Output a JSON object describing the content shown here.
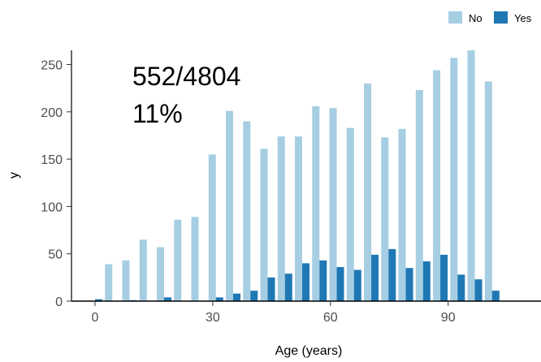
{
  "chart_data": {
    "type": "bar",
    "xlabel": "Age (years)",
    "ylabel": "y",
    "xlim": [
      -7,
      114
    ],
    "ylim": [
      0,
      265
    ],
    "xticks": [
      0,
      30,
      60,
      90
    ],
    "yticks": [
      0,
      50,
      100,
      150,
      200,
      250
    ],
    "grid": false,
    "legend_position": "top-right",
    "annotations": [
      "552/4804",
      "11%"
    ],
    "x": [
      0,
      4.4,
      8.8,
      13.2,
      17.6,
      22.0,
      26.4,
      30.8,
      35.2,
      39.6,
      44.0,
      48.4,
      52.8,
      57.2,
      61.6,
      66.0,
      70.4,
      74.8,
      79.2,
      83.6,
      88.0,
      92.4,
      96.8,
      101.2
    ],
    "series": [
      {
        "name": "No",
        "color": "#a6cee3",
        "values": [
          0,
          39,
          43,
          65,
          57,
          86,
          89,
          155,
          201,
          190,
          161,
          174,
          174,
          206,
          204,
          183,
          230,
          173,
          182,
          223,
          244,
          257,
          265,
          232
        ]
      },
      {
        "name": "Yes",
        "color": "#1f78b4",
        "values": [
          2,
          0,
          1,
          0,
          4,
          0,
          0,
          4,
          8,
          11,
          25,
          29,
          40,
          43,
          36,
          33,
          49,
          55,
          35,
          42,
          49,
          28,
          23,
          11
        ]
      }
    ]
  }
}
